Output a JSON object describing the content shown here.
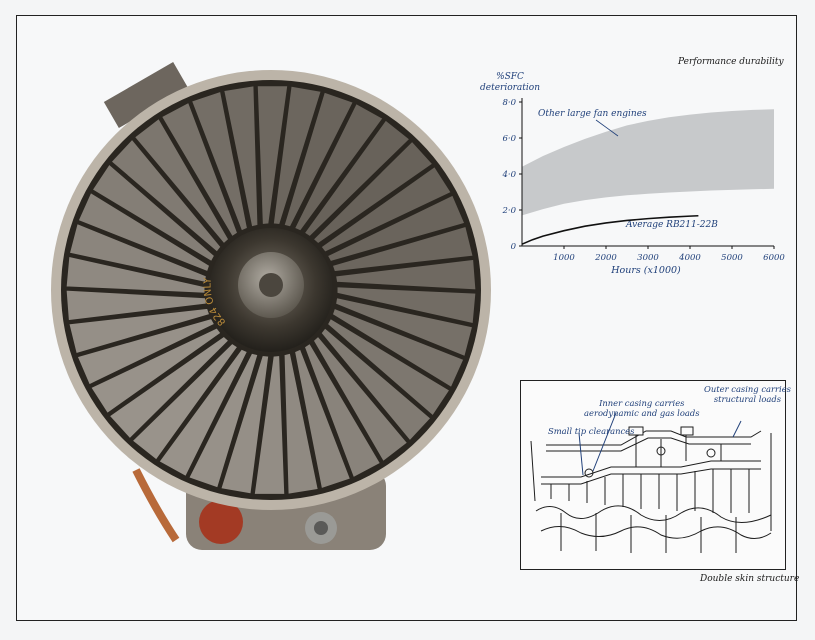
{
  "colors": {
    "blue_text": "#20407a",
    "band": "#c7c9cb",
    "line": "#111111"
  },
  "perf_title": "Performance durability",
  "chart_data": {
    "type": "area",
    "title": "",
    "ylabel_line1": "%SFC",
    "ylabel_line2": "deterioration",
    "xlabel": "Hours (x1000)",
    "xlim": [
      0,
      6000
    ],
    "ylim": [
      0,
      8
    ],
    "xticks": [
      "1000",
      "2000",
      "3000",
      "4000",
      "5000",
      "6000"
    ],
    "yticks": [
      "0",
      "2·0",
      "4·0",
      "6·0",
      "8·0"
    ],
    "band": {
      "name": "Other large fan engines",
      "x": [
        0,
        500,
        1000,
        1500,
        2000,
        2500,
        3000,
        3500,
        4000,
        4500,
        5000,
        5500,
        6000
      ],
      "upper": [
        4.4,
        5.0,
        5.5,
        5.95,
        6.35,
        6.7,
        6.95,
        7.15,
        7.3,
        7.42,
        7.5,
        7.56,
        7.6
      ],
      "lower": [
        1.7,
        2.05,
        2.35,
        2.55,
        2.7,
        2.82,
        2.9,
        2.97,
        3.03,
        3.08,
        3.12,
        3.15,
        3.18
      ]
    },
    "series": [
      {
        "name": "Average RB211-22B",
        "x": [
          0,
          250,
          500,
          1000,
          1500,
          2000,
          2500,
          3000,
          3500,
          4000,
          4200
        ],
        "values": [
          0.1,
          0.35,
          0.55,
          0.85,
          1.1,
          1.28,
          1.42,
          1.52,
          1.6,
          1.66,
          1.68
        ]
      }
    ],
    "grid": false,
    "legend": "annotations"
  },
  "skin_title": "Double skin structure",
  "callouts": {
    "outer_line1": "Outer casing carries",
    "outer_line2": "structural loads",
    "inner_line1": "Inner casing carries",
    "inner_line2": "aerodynamic and gas loads",
    "tip": "Small tip clearances"
  },
  "fan_text": "824 ONLY"
}
